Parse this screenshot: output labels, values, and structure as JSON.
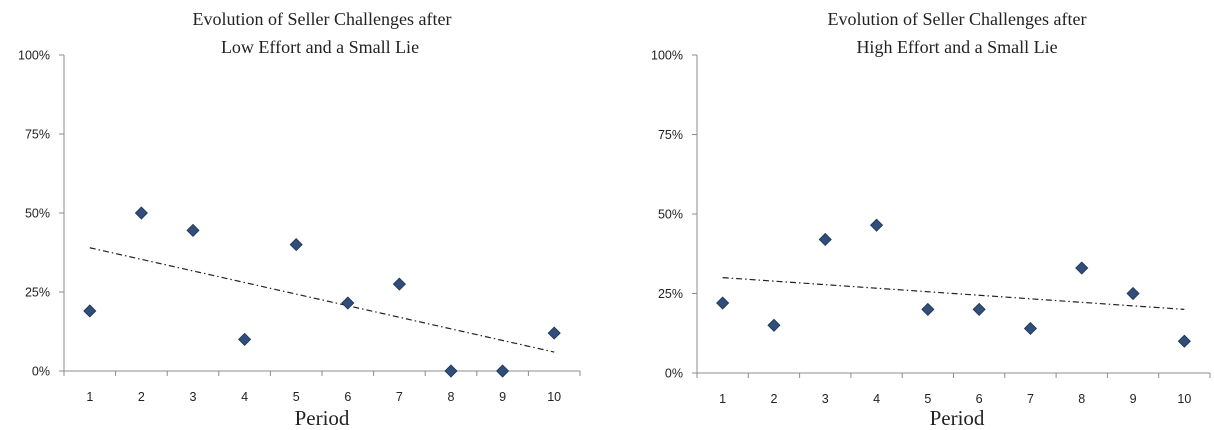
{
  "chart_data": [
    {
      "type": "scatter",
      "title": [
        "Evolution of Seller Challenges after",
        "Low Effort and a Small Lie"
      ],
      "xlabel": "Period",
      "ylabel": "",
      "x": [
        1,
        2,
        3,
        4,
        5,
        6,
        7,
        8,
        9,
        10
      ],
      "x_tick_labels": [
        "1",
        "2",
        "3",
        "4",
        "5",
        "6",
        "7",
        "8",
        "9",
        "10"
      ],
      "y_tick_labels": [
        "0%",
        "25%",
        "50%",
        "75%",
        "100%"
      ],
      "ylim": [
        0,
        100
      ],
      "xlim": [
        0.5,
        10.5
      ],
      "series": [
        {
          "values": [
            19,
            50,
            44.5,
            10,
            40,
            21.5,
            27.5,
            0,
            0,
            12
          ]
        }
      ],
      "trendline": {
        "type": "linear",
        "style": "dash-dot",
        "start": [
          1,
          39
        ],
        "end": [
          10,
          6
        ]
      },
      "marker": "diamond",
      "marker_color": "#2f4f7a",
      "trendline_color": "#222222",
      "grid": false
    },
    {
      "type": "scatter",
      "title": [
        "Evolution of Seller Challenges after",
        "High Effort and a Small Lie"
      ],
      "xlabel": "Period",
      "ylabel": "",
      "x": [
        1,
        2,
        3,
        4,
        5,
        6,
        7,
        8,
        9,
        10
      ],
      "x_tick_labels": [
        "1",
        "2",
        "3",
        "4",
        "5",
        "6",
        "7",
        "8",
        "9",
        "10"
      ],
      "y_tick_labels": [
        "0%",
        "25%",
        "50%",
        "75%",
        "100%"
      ],
      "ylim": [
        0,
        100
      ],
      "xlim": [
        0.5,
        10.5
      ],
      "series": [
        {
          "values": [
            22,
            15,
            42,
            46.5,
            20,
            20,
            14,
            33,
            25,
            10
          ]
        }
      ],
      "trendline": {
        "type": "linear",
        "style": "dash-dot",
        "start": [
          1,
          30
        ],
        "end": [
          10,
          20
        ]
      },
      "marker": "diamond",
      "marker_color": "#2f4f7a",
      "trendline_color": "#222222",
      "grid": false
    }
  ]
}
